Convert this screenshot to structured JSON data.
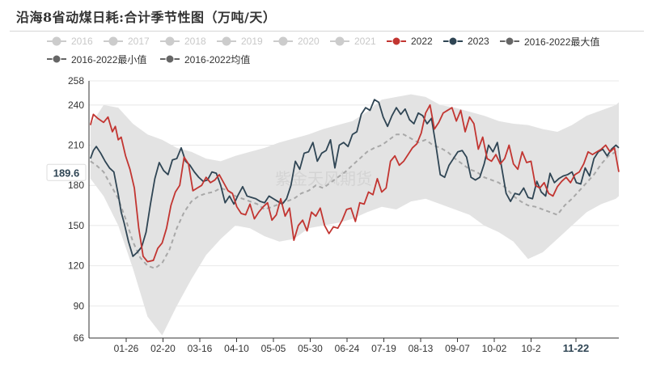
{
  "header": {
    "title": "沿海8省动煤日耗:合计季节性图（万吨/天）"
  },
  "legend": [
    {
      "label": "2016",
      "color": "#cccccc",
      "active": false
    },
    {
      "label": "2017",
      "color": "#cccccc",
      "active": false
    },
    {
      "label": "2018",
      "color": "#cccccc",
      "active": false
    },
    {
      "label": "2019",
      "color": "#cccccc",
      "active": false
    },
    {
      "label": "2020",
      "color": "#cccccc",
      "active": false
    },
    {
      "label": "2021",
      "color": "#cccccc",
      "active": false
    },
    {
      "label": "2022",
      "color": "#c23531",
      "active": true
    },
    {
      "label": "2023",
      "color": "#2f4554",
      "active": true
    },
    {
      "label": "2016-2022最大值",
      "color": "#666666",
      "active": true
    },
    {
      "label": "2016-2022最小值",
      "color": "#666666",
      "active": true
    },
    {
      "label": "2016-2022均值",
      "color": "#666666",
      "active": true
    }
  ],
  "watermark": "紫金天风期货",
  "colors": {
    "series_2022": "#c23531",
    "series_2023": "#2f4554",
    "range_band": "#e3e3e3",
    "mean": "#a8a8a8"
  },
  "chart_data": {
    "type": "line",
    "y_ticks": [
      66,
      90,
      120,
      150,
      180,
      210,
      240,
      258
    ],
    "ylim": [
      66,
      258
    ],
    "x_ticks": [
      "01-26",
      "02-20",
      "03-16",
      "04-10",
      "05-05",
      "05-30",
      "06-24",
      "07-19",
      "08-13",
      "09-07",
      "10-02",
      "10-2",
      "11-22"
    ],
    "highlighted_tick": "11-22",
    "pointer_value": "189.6",
    "grid": "horizontal",
    "series": [
      {
        "name": "2022",
        "style": "line",
        "x": [
          1,
          3,
          6,
          10,
          13,
          16,
          18,
          20,
          22,
          25,
          28,
          31,
          34,
          37,
          40,
          44,
          47,
          50,
          53,
          56,
          59,
          62,
          65,
          68,
          71,
          74,
          77,
          80,
          83,
          86,
          89,
          92,
          95,
          98,
          101,
          104,
          107,
          110,
          113,
          116,
          119,
          122,
          125,
          128,
          131,
          134,
          137,
          140,
          143,
          146,
          149,
          152,
          155,
          158,
          161,
          164,
          167,
          170,
          173,
          176,
          179,
          182,
          185,
          188,
          191,
          194,
          197,
          200,
          203,
          206,
          209,
          212,
          215,
          218,
          221,
          224,
          227,
          230,
          233,
          236,
          239,
          242,
          245,
          248,
          251,
          254,
          257,
          260,
          263,
          266,
          269,
          272,
          275,
          278,
          281,
          284,
          287,
          290,
          293,
          296,
          299,
          302,
          305,
          308,
          311,
          314,
          317,
          320,
          323,
          326,
          329,
          332,
          335,
          338,
          341,
          344,
          347,
          350,
          353,
          356,
          359,
          362
        ],
        "values": [
          225,
          233,
          230,
          227,
          231,
          220,
          224,
          214,
          216,
          202,
          192,
          178,
          148,
          127,
          123,
          124,
          133,
          137,
          148,
          165,
          175,
          180,
          201,
          196,
          176,
          178,
          180,
          186,
          182,
          184,
          188,
          182,
          176,
          174,
          164,
          159,
          158,
          166,
          155,
          160,
          164,
          167,
          154,
          158,
          170,
          157,
          163,
          139,
          150,
          154,
          146,
          160,
          157,
          163,
          150,
          144,
          149,
          148,
          154,
          162,
          163,
          153,
          167,
          166,
          175,
          173,
          185,
          175,
          178,
          198,
          202,
          195,
          198,
          203,
          208,
          211,
          219,
          234,
          240,
          222,
          227,
          234,
          236,
          238,
          228,
          236,
          220,
          231,
          226,
          207,
          216,
          200,
          198,
          203,
          196,
          200,
          210,
          196,
          192,
          205,
          197,
          198,
          180,
          178,
          182,
          174,
          172,
          179,
          183,
          186,
          182,
          188,
          190,
          196,
          205,
          203,
          205,
          207,
          210,
          205,
          208,
          190
        ]
      },
      {
        "name": "2023",
        "style": "line",
        "x": [
          1,
          3,
          5,
          8,
          11,
          14,
          17,
          20,
          22,
          24,
          27,
          30,
          33,
          36,
          39,
          42,
          45,
          48,
          51,
          54,
          57,
          60,
          63,
          66,
          69,
          72,
          75,
          78,
          81,
          84,
          87,
          90,
          93,
          96,
          99,
          102,
          105,
          108,
          111,
          114,
          117,
          120,
          123,
          126,
          129,
          132,
          135,
          138,
          141,
          144,
          147,
          150,
          153,
          156,
          159,
          162,
          165,
          168,
          171,
          174,
          177,
          180,
          183,
          186,
          189,
          192,
          195,
          198,
          201,
          204,
          207,
          210,
          213,
          216,
          219,
          222,
          225,
          228,
          231,
          234,
          237,
          240,
          243,
          246,
          249,
          252,
          255,
          258,
          261,
          264,
          267,
          270,
          273,
          276,
          279,
          282,
          285,
          288,
          291,
          294,
          297,
          300,
          303,
          306,
          309,
          312,
          315,
          318,
          321,
          324,
          327,
          330,
          333,
          336,
          339,
          342,
          345,
          348,
          351,
          354,
          357,
          360,
          362
        ],
        "values": [
          200,
          206,
          209,
          204,
          198,
          193,
          190,
          173,
          160,
          152,
          138,
          127,
          130,
          134,
          145,
          166,
          185,
          197,
          191,
          188,
          199,
          200,
          208,
          198,
          195,
          190,
          186,
          183,
          184,
          190,
          189,
          180,
          167,
          172,
          166,
          173,
          179,
          172,
          171,
          170,
          168,
          167,
          172,
          170,
          168,
          166,
          170,
          180,
          198,
          192,
          204,
          205,
          212,
          198,
          204,
          206,
          214,
          193,
          210,
          212,
          209,
          218,
          220,
          233,
          238,
          236,
          244,
          242,
          231,
          224,
          232,
          238,
          233,
          237,
          229,
          226,
          234,
          232,
          226,
          230,
          210,
          188,
          186,
          195,
          200,
          205,
          206,
          201,
          186,
          184,
          186,
          196,
          210,
          205,
          212,
          193,
          174,
          168,
          174,
          173,
          178,
          171,
          170,
          183,
          175,
          172,
          189,
          182,
          185,
          187,
          188,
          190,
          182,
          181,
          193,
          187,
          200,
          205,
          207,
          202,
          207,
          210,
          208
        ]
      },
      {
        "name": "2016-2022最大值",
        "style": "band-upper",
        "x": [
          1,
          10,
          20,
          30,
          40,
          50,
          60,
          70,
          80,
          90,
          100,
          110,
          120,
          130,
          140,
          150,
          160,
          170,
          180,
          190,
          200,
          210,
          220,
          230,
          240,
          250,
          260,
          270,
          280,
          290,
          300,
          310,
          320,
          330,
          340,
          350,
          360,
          362
        ],
        "values": [
          225,
          240,
          238,
          226,
          218,
          214,
          208,
          205,
          200,
          198,
          202,
          205,
          208,
          212,
          215,
          218,
          222,
          225,
          228,
          235,
          244,
          246,
          248,
          246,
          240,
          238,
          235,
          232,
          228,
          226,
          225,
          222,
          220,
          225,
          232,
          236,
          240,
          242
        ]
      },
      {
        "name": "2016-2022最小值",
        "style": "band-lower",
        "x": [
          1,
          10,
          20,
          30,
          40,
          50,
          60,
          70,
          80,
          90,
          100,
          110,
          120,
          130,
          140,
          150,
          160,
          170,
          180,
          190,
          200,
          210,
          220,
          230,
          240,
          250,
          260,
          270,
          280,
          290,
          300,
          310,
          320,
          330,
          340,
          350,
          360,
          362
        ],
        "values": [
          185,
          172,
          150,
          118,
          82,
          68,
          90,
          110,
          128,
          140,
          150,
          148,
          142,
          138,
          140,
          148,
          150,
          152,
          155,
          160,
          164,
          162,
          168,
          170,
          166,
          162,
          158,
          150,
          145,
          138,
          125,
          130,
          140,
          150,
          160,
          166,
          170,
          172
        ]
      },
      {
        "name": "2016-2022均值",
        "style": "dashed",
        "x": [
          1,
          5,
          10,
          15,
          20,
          25,
          30,
          35,
          40,
          45,
          50,
          55,
          60,
          65,
          70,
          75,
          80,
          85,
          90,
          95,
          100,
          105,
          110,
          115,
          120,
          125,
          130,
          135,
          140,
          145,
          150,
          155,
          160,
          165,
          170,
          175,
          180,
          185,
          190,
          195,
          200,
          205,
          210,
          215,
          220,
          225,
          230,
          235,
          240,
          245,
          250,
          255,
          260,
          265,
          270,
          275,
          280,
          285,
          290,
          295,
          300,
          305,
          310,
          315,
          320,
          325,
          330,
          335,
          340,
          345,
          350,
          355,
          360,
          362
        ],
        "values": [
          198,
          195,
          190,
          180,
          170,
          155,
          138,
          126,
          120,
          118,
          122,
          132,
          148,
          160,
          168,
          172,
          174,
          175,
          178,
          176,
          172,
          170,
          168,
          166,
          162,
          164,
          166,
          168,
          170,
          174,
          176,
          180,
          178,
          182,
          186,
          190,
          195,
          200,
          205,
          208,
          210,
          214,
          218,
          218,
          215,
          212,
          214,
          210,
          208,
          205,
          200,
          196,
          192,
          190,
          186,
          184,
          182,
          178,
          172,
          168,
          165,
          164,
          162,
          160,
          158,
          165,
          170,
          176,
          182,
          188,
          196,
          202,
          205,
          204
        ]
      }
    ]
  }
}
